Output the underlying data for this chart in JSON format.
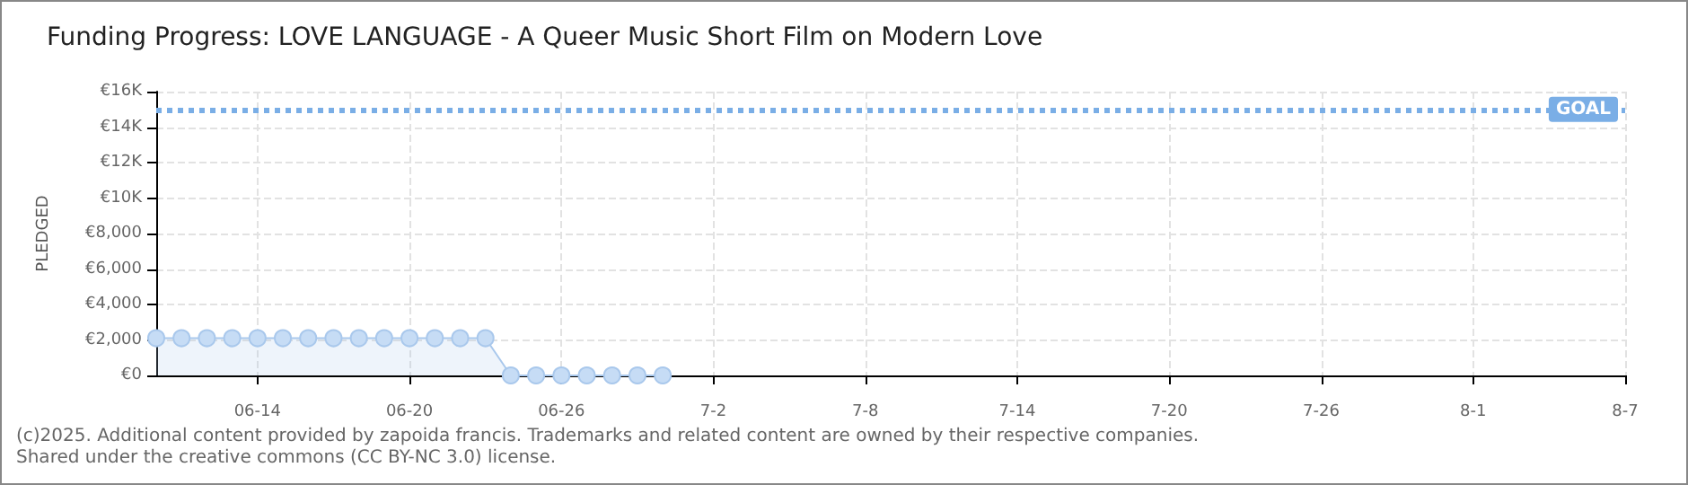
{
  "chart_data": {
    "type": "area",
    "title": "Funding Progress: LOVE LANGUAGE - A Queer Music Short Film on Modern Love",
    "ylabel": "PLEDGED",
    "annotations": [
      "(c)2025. Additional content provided by zapoida francis. Trademarks and related content are owned by their respective companies.",
      "Shared under the creative commons (CC BY-NC 3.0) license."
    ],
    "x": [
      "--06-10",
      "--06-11",
      "--06-12",
      "--06-13",
      "--06-14",
      "--06-15",
      "--06-16",
      "--06-17",
      "--06-18",
      "--06-19",
      "--06-20",
      "--06-21",
      "--06-22",
      "--06-23",
      "--06-24",
      "--06-25",
      "--06-26",
      "--06-27",
      "--06-28",
      "--06-29",
      "--06-30"
    ],
    "series": [
      {
        "color": "#a9c8ec",
        "values": [
          2100,
          2100,
          2100,
          2100,
          2100,
          2100,
          2100,
          2100,
          2100,
          2100,
          2100,
          2100,
          2100,
          2100,
          0,
          0,
          0,
          0,
          0,
          0,
          0
        ]
      }
    ],
    "xlim": [
      "--06-10",
      "--08-07"
    ],
    "xticks": [
      {
        "value": "--06-14",
        "label": "06-14"
      },
      {
        "value": "--06-20",
        "label": "06-20"
      },
      {
        "value": "--06-26",
        "label": "06-26"
      },
      {
        "value": "--07-02",
        "label": "7-2"
      },
      {
        "value": "--07-08",
        "label": "7-8"
      },
      {
        "value": "--07-14",
        "label": "7-14"
      },
      {
        "value": "--07-20",
        "label": "7-20"
      },
      {
        "value": "--07-26",
        "label": "7-26"
      },
      {
        "value": "--08-01",
        "label": "8-1"
      },
      {
        "value": "--08-07",
        "label": "8-7"
      }
    ],
    "ylim": [
      0,
      16000
    ],
    "yticks": [
      {
        "value": 0,
        "label": "€0"
      },
      {
        "value": 2000,
        "label": "€2,000"
      },
      {
        "value": 4000,
        "label": "€4,000"
      },
      {
        "value": 6000,
        "label": "€6,000"
      },
      {
        "value": 8000,
        "label": "€8,000"
      },
      {
        "value": 10000,
        "label": "€10K"
      },
      {
        "value": 12000,
        "label": "€12K"
      },
      {
        "value": 14000,
        "label": "€14K"
      },
      {
        "value": 16000,
        "label": "€16K"
      }
    ],
    "ref_lines": [
      {
        "axis": "y",
        "value": 15000,
        "label": "GOAL",
        "color": "#7aaee6",
        "line_style": "dotted"
      }
    ],
    "grid": true,
    "marker": "circle",
    "line_style": "solid"
  }
}
